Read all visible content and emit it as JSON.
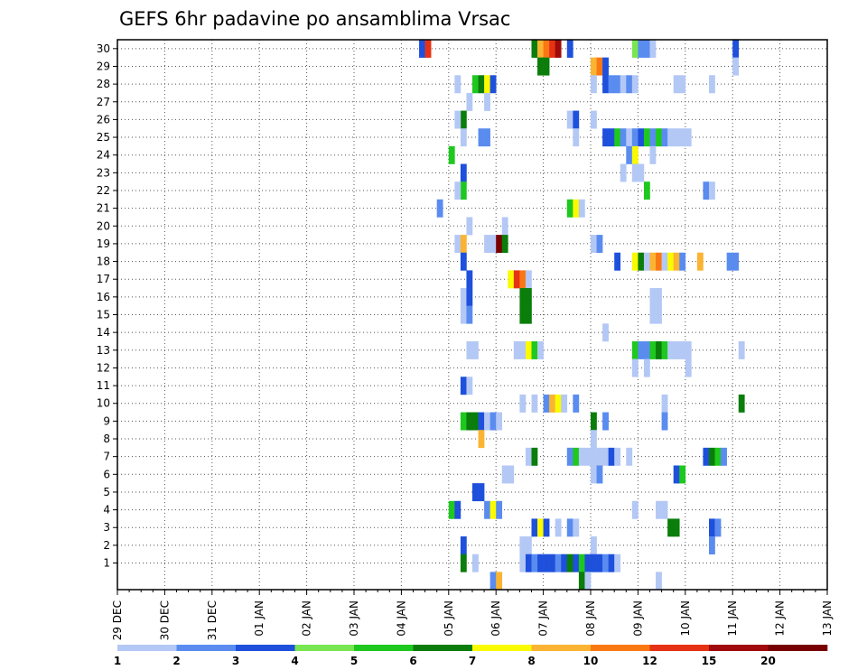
{
  "chart_data": {
    "type": "heatmap",
    "title": "GEFS 6hr padavine po ansamblima Vrsac",
    "xlabel": "",
    "ylabel": "",
    "x_ticks": [
      "29 DEC",
      "30 DEC",
      "31 DEC",
      "01 JAN",
      "02 JAN",
      "03 JAN",
      "04 JAN",
      "05 JAN",
      "06 JAN",
      "07 JAN",
      "08 JAN",
      "09 JAN",
      "10 JAN",
      "11 JAN",
      "12 JAN",
      "13 JAN"
    ],
    "x_range_days": [
      0,
      15
    ],
    "x_step_hours": 6,
    "y_ticks": [
      1,
      2,
      3,
      4,
      5,
      6,
      7,
      8,
      9,
      10,
      11,
      12,
      13,
      14,
      15,
      16,
      17,
      18,
      19,
      20,
      21,
      22,
      23,
      24,
      25,
      26,
      27,
      28,
      29,
      30
    ],
    "y_range": [
      0,
      30
    ],
    "grid": "dotted",
    "colorbar": {
      "labels": [
        "1",
        "2",
        "3",
        "4",
        "5",
        "6",
        "7",
        "8",
        "10",
        "12",
        "15",
        "20"
      ],
      "colors": [
        "#b4c8f5",
        "#5a8cf0",
        "#1e50dc",
        "#78e650",
        "#1ec81e",
        "#0a7d0a",
        "#fafa00",
        "#fab432",
        "#fa7814",
        "#e63214",
        "#a00a0a",
        "#780000"
      ]
    },
    "cells_note_format": "[ensemble_member, time_index (6h steps from 29 DEC 00z), color_index (0-based into colorbar.colors)]",
    "cells": [
      [
        30,
        51,
        2
      ],
      [
        30,
        52,
        9
      ],
      [
        30,
        70,
        5
      ],
      [
        30,
        71,
        7
      ],
      [
        30,
        72,
        8
      ],
      [
        30,
        73,
        9
      ],
      [
        30,
        74,
        10
      ],
      [
        30,
        76,
        2
      ],
      [
        30,
        87,
        3
      ],
      [
        30,
        88,
        1
      ],
      [
        30,
        89,
        1
      ],
      [
        30,
        90,
        0
      ],
      [
        30,
        104,
        2
      ],
      [
        29,
        71,
        5
      ],
      [
        29,
        72,
        5
      ],
      [
        29,
        80,
        7
      ],
      [
        29,
        81,
        8
      ],
      [
        29,
        82,
        2
      ],
      [
        29,
        104,
        0
      ],
      [
        28,
        57,
        0
      ],
      [
        28,
        60,
        4
      ],
      [
        28,
        61,
        5
      ],
      [
        28,
        62,
        6
      ],
      [
        28,
        63,
        2
      ],
      [
        28,
        80,
        0
      ],
      [
        28,
        82,
        2
      ],
      [
        28,
        83,
        1
      ],
      [
        28,
        84,
        1
      ],
      [
        28,
        85,
        0
      ],
      [
        28,
        86,
        1
      ],
      [
        28,
        87,
        0
      ],
      [
        28,
        94,
        0
      ],
      [
        28,
        95,
        0
      ],
      [
        28,
        100,
        0
      ],
      [
        27,
        59,
        0
      ],
      [
        27,
        62,
        0
      ],
      [
        26,
        58,
        5
      ],
      [
        26,
        57,
        0
      ],
      [
        26,
        76,
        0
      ],
      [
        26,
        77,
        2
      ],
      [
        26,
        80,
        0
      ],
      [
        25,
        58,
        0
      ],
      [
        25,
        61,
        1
      ],
      [
        25,
        62,
        1
      ],
      [
        25,
        77,
        0
      ],
      [
        25,
        82,
        2
      ],
      [
        25,
        83,
        2
      ],
      [
        25,
        84,
        4
      ],
      [
        25,
        85,
        1
      ],
      [
        25,
        86,
        0
      ],
      [
        25,
        87,
        1
      ],
      [
        25,
        88,
        2
      ],
      [
        25,
        89,
        4
      ],
      [
        25,
        90,
        1
      ],
      [
        25,
        91,
        4
      ],
      [
        25,
        92,
        1
      ],
      [
        25,
        93,
        0
      ],
      [
        25,
        94,
        0
      ],
      [
        25,
        95,
        0
      ],
      [
        25,
        96,
        0
      ],
      [
        24,
        56,
        4
      ],
      [
        24,
        86,
        1
      ],
      [
        24,
        87,
        6
      ],
      [
        24,
        90,
        0
      ],
      [
        23,
        58,
        2
      ],
      [
        23,
        85,
        0
      ],
      [
        23,
        87,
        0
      ],
      [
        23,
        88,
        0
      ],
      [
        22,
        58,
        4
      ],
      [
        22,
        57,
        0
      ],
      [
        22,
        89,
        4
      ],
      [
        22,
        99,
        1
      ],
      [
        22,
        100,
        0
      ],
      [
        21,
        54,
        1
      ],
      [
        21,
        76,
        4
      ],
      [
        21,
        77,
        6
      ],
      [
        21,
        78,
        0
      ],
      [
        20,
        59,
        0
      ],
      [
        20,
        65,
        0
      ],
      [
        19,
        57,
        0
      ],
      [
        19,
        58,
        7
      ],
      [
        19,
        62,
        0
      ],
      [
        19,
        63,
        0
      ],
      [
        19,
        64,
        11
      ],
      [
        19,
        65,
        5
      ],
      [
        19,
        80,
        0
      ],
      [
        19,
        81,
        1
      ],
      [
        18,
        58,
        2
      ],
      [
        18,
        84,
        2
      ],
      [
        18,
        87,
        6
      ],
      [
        18,
        88,
        5
      ],
      [
        18,
        89,
        0
      ],
      [
        18,
        90,
        7
      ],
      [
        18,
        91,
        8
      ],
      [
        18,
        92,
        0
      ],
      [
        18,
        93,
        6
      ],
      [
        18,
        94,
        7
      ],
      [
        18,
        95,
        1
      ],
      [
        18,
        98,
        7
      ],
      [
        18,
        103,
        1
      ],
      [
        18,
        104,
        1
      ],
      [
        17,
        59,
        2
      ],
      [
        17,
        66,
        6
      ],
      [
        17,
        67,
        9
      ],
      [
        17,
        68,
        8
      ],
      [
        17,
        69,
        0
      ],
      [
        16,
        58,
        0
      ],
      [
        16,
        59,
        2
      ],
      [
        16,
        68,
        5
      ],
      [
        16,
        69,
        5
      ],
      [
        16,
        90,
        0
      ],
      [
        16,
        91,
        0
      ],
      [
        15,
        58,
        0
      ],
      [
        15,
        59,
        1
      ],
      [
        15,
        68,
        5
      ],
      [
        15,
        69,
        5
      ],
      [
        15,
        90,
        0
      ],
      [
        15,
        91,
        0
      ],
      [
        14,
        82,
        0
      ],
      [
        13,
        59,
        0
      ],
      [
        13,
        60,
        0
      ],
      [
        13,
        67,
        0
      ],
      [
        13,
        68,
        0
      ],
      [
        13,
        69,
        6
      ],
      [
        13,
        70,
        4
      ],
      [
        13,
        71,
        0
      ],
      [
        13,
        87,
        4
      ],
      [
        13,
        88,
        1
      ],
      [
        13,
        89,
        1
      ],
      [
        13,
        90,
        4
      ],
      [
        13,
        91,
        5
      ],
      [
        13,
        92,
        4
      ],
      [
        13,
        93,
        0
      ],
      [
        13,
        94,
        0
      ],
      [
        13,
        95,
        0
      ],
      [
        13,
        96,
        0
      ],
      [
        13,
        105,
        0
      ],
      [
        12,
        87,
        0
      ],
      [
        12,
        89,
        0
      ],
      [
        12,
        96,
        0
      ],
      [
        11,
        58,
        2
      ],
      [
        11,
        59,
        0
      ],
      [
        10,
        68,
        0
      ],
      [
        10,
        70,
        0
      ],
      [
        10,
        72,
        1
      ],
      [
        10,
        73,
        7
      ],
      [
        10,
        74,
        6
      ],
      [
        10,
        75,
        0
      ],
      [
        10,
        77,
        1
      ],
      [
        10,
        92,
        0
      ],
      [
        10,
        105,
        5
      ],
      [
        9,
        58,
        4
      ],
      [
        9,
        59,
        5
      ],
      [
        9,
        60,
        5
      ],
      [
        9,
        61,
        2
      ],
      [
        9,
        62,
        0
      ],
      [
        9,
        63,
        1
      ],
      [
        9,
        64,
        0
      ],
      [
        9,
        80,
        5
      ],
      [
        9,
        82,
        1
      ],
      [
        9,
        92,
        1
      ],
      [
        8,
        61,
        7
      ],
      [
        8,
        80,
        0
      ],
      [
        7,
        69,
        0
      ],
      [
        7,
        70,
        5
      ],
      [
        7,
        76,
        1
      ],
      [
        7,
        77,
        4
      ],
      [
        7,
        78,
        0
      ],
      [
        7,
        79,
        0
      ],
      [
        7,
        80,
        0
      ],
      [
        7,
        81,
        0
      ],
      [
        7,
        82,
        0
      ],
      [
        7,
        83,
        2
      ],
      [
        7,
        84,
        0
      ],
      [
        7,
        86,
        0
      ],
      [
        7,
        99,
        2
      ],
      [
        7,
        100,
        5
      ],
      [
        7,
        101,
        4
      ],
      [
        7,
        102,
        1
      ],
      [
        6,
        65,
        0
      ],
      [
        6,
        66,
        0
      ],
      [
        6,
        80,
        0
      ],
      [
        6,
        81,
        1
      ],
      [
        6,
        94,
        2
      ],
      [
        6,
        95,
        4
      ],
      [
        5,
        60,
        2
      ],
      [
        5,
        61,
        2
      ],
      [
        4,
        56,
        4
      ],
      [
        4,
        57,
        2
      ],
      [
        4,
        62,
        1
      ],
      [
        4,
        63,
        6
      ],
      [
        4,
        64,
        1
      ],
      [
        4,
        87,
        0
      ],
      [
        4,
        91,
        0
      ],
      [
        4,
        92,
        0
      ],
      [
        3,
        70,
        2
      ],
      [
        3,
        71,
        6
      ],
      [
        3,
        72,
        2
      ],
      [
        3,
        74,
        0
      ],
      [
        3,
        76,
        1
      ],
      [
        3,
        77,
        0
      ],
      [
        3,
        93,
        5
      ],
      [
        3,
        94,
        5
      ],
      [
        3,
        100,
        2
      ],
      [
        3,
        101,
        1
      ],
      [
        2,
        58,
        2
      ],
      [
        2,
        68,
        0
      ],
      [
        2,
        69,
        0
      ],
      [
        2,
        80,
        0
      ],
      [
        2,
        100,
        1
      ],
      [
        1,
        58,
        5
      ],
      [
        1,
        60,
        0
      ],
      [
        1,
        68,
        0
      ],
      [
        1,
        69,
        2
      ],
      [
        1,
        70,
        1
      ],
      [
        1,
        71,
        2
      ],
      [
        1,
        72,
        2
      ],
      [
        1,
        73,
        2
      ],
      [
        1,
        74,
        1
      ],
      [
        1,
        75,
        2
      ],
      [
        1,
        76,
        5
      ],
      [
        1,
        77,
        2
      ],
      [
        1,
        78,
        4
      ],
      [
        1,
        79,
        2
      ],
      [
        1,
        80,
        2
      ],
      [
        1,
        81,
        2
      ],
      [
        1,
        82,
        1
      ],
      [
        1,
        83,
        2
      ],
      [
        1,
        84,
        0
      ],
      [
        0,
        63,
        1
      ],
      [
        0,
        64,
        7
      ],
      [
        0,
        78,
        5
      ],
      [
        0,
        79,
        0
      ],
      [
        0,
        91,
        0
      ]
    ]
  }
}
